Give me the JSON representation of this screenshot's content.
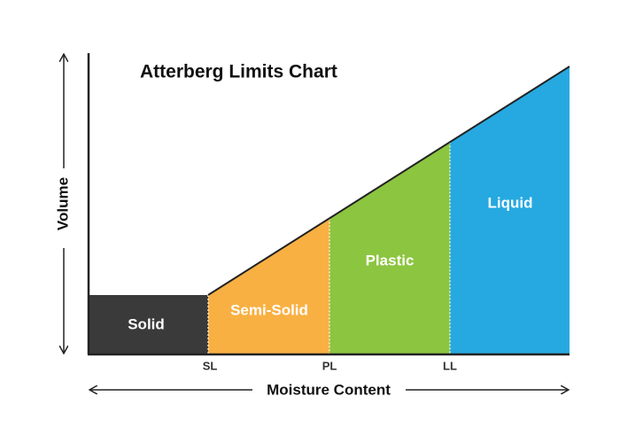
{
  "title": "Atterberg Limits Chart",
  "y_axis_label": "Volume",
  "x_axis_label": "Moisture Content",
  "regions": [
    {
      "label": "Solid"
    },
    {
      "label": "Semi-Solid"
    },
    {
      "label": "Plastic"
    },
    {
      "label": "Liquid"
    }
  ],
  "limits": [
    {
      "label": "SL"
    },
    {
      "label": "PL"
    },
    {
      "label": "LL"
    }
  ]
}
